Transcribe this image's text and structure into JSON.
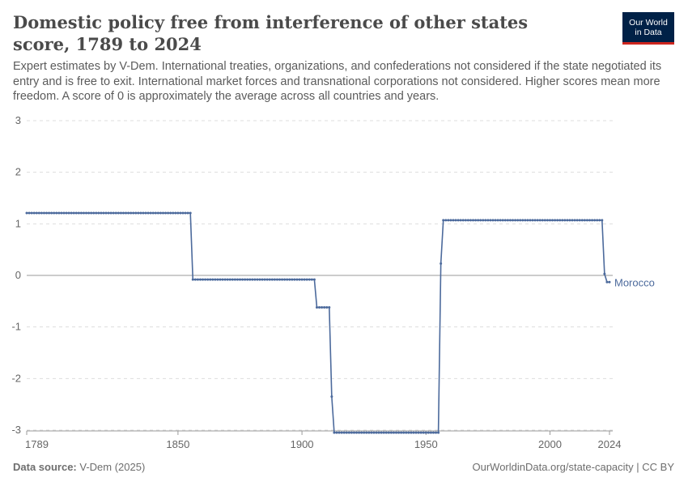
{
  "header": {
    "title": "Domestic policy free from interference of other states score, 1789 to 2024",
    "subtitle": "Expert estimates by V-Dem. International treaties, organizations, and confederations not considered if the state negotiated its entry and is free to exit. International market forces and transnational corporations not considered. Higher scores mean more freedom. A score of 0 is approximately the average across all countries and years."
  },
  "logo": {
    "line1": "Our World",
    "line2": "in Data"
  },
  "footer": {
    "source_label": "Data source:",
    "source_value": "V-Dem (2025)",
    "url": "OurWorldinData.org/state-capacity | CC BY"
  },
  "colors": {
    "series": "#4c6a9c",
    "grid": "#dddddd",
    "zero_line": "#999999"
  },
  "chart_data": {
    "type": "line",
    "title": "Domestic policy free from interference of other states score, 1789 to 2024",
    "xlabel": "",
    "ylabel": "",
    "xlim": [
      1789,
      2024
    ],
    "ylim": [
      -3,
      3
    ],
    "x_ticks": [
      1789,
      1850,
      1900,
      1950,
      2000,
      2024
    ],
    "y_ticks": [
      3,
      2,
      1,
      0,
      -1,
      -2,
      -3
    ],
    "grid": true,
    "series": [
      {
        "name": "Morocco",
        "segments": [
          {
            "from": 1789,
            "to": 1855,
            "value": 1.21
          },
          {
            "from": 1856,
            "to": 1905,
            "value": -0.08
          },
          {
            "from": 1906,
            "to": 1911,
            "value": -0.62
          },
          {
            "from": 1912,
            "to": 1912,
            "value": -2.35
          },
          {
            "from": 1913,
            "to": 1955,
            "value": -3.05
          },
          {
            "from": 1956,
            "to": 1956,
            "value": 0.23
          },
          {
            "from": 1957,
            "to": 2021,
            "value": 1.07
          },
          {
            "from": 2022,
            "to": 2022,
            "value": 0.03
          },
          {
            "from": 2023,
            "to": 2024,
            "value": -0.13
          }
        ]
      }
    ]
  }
}
